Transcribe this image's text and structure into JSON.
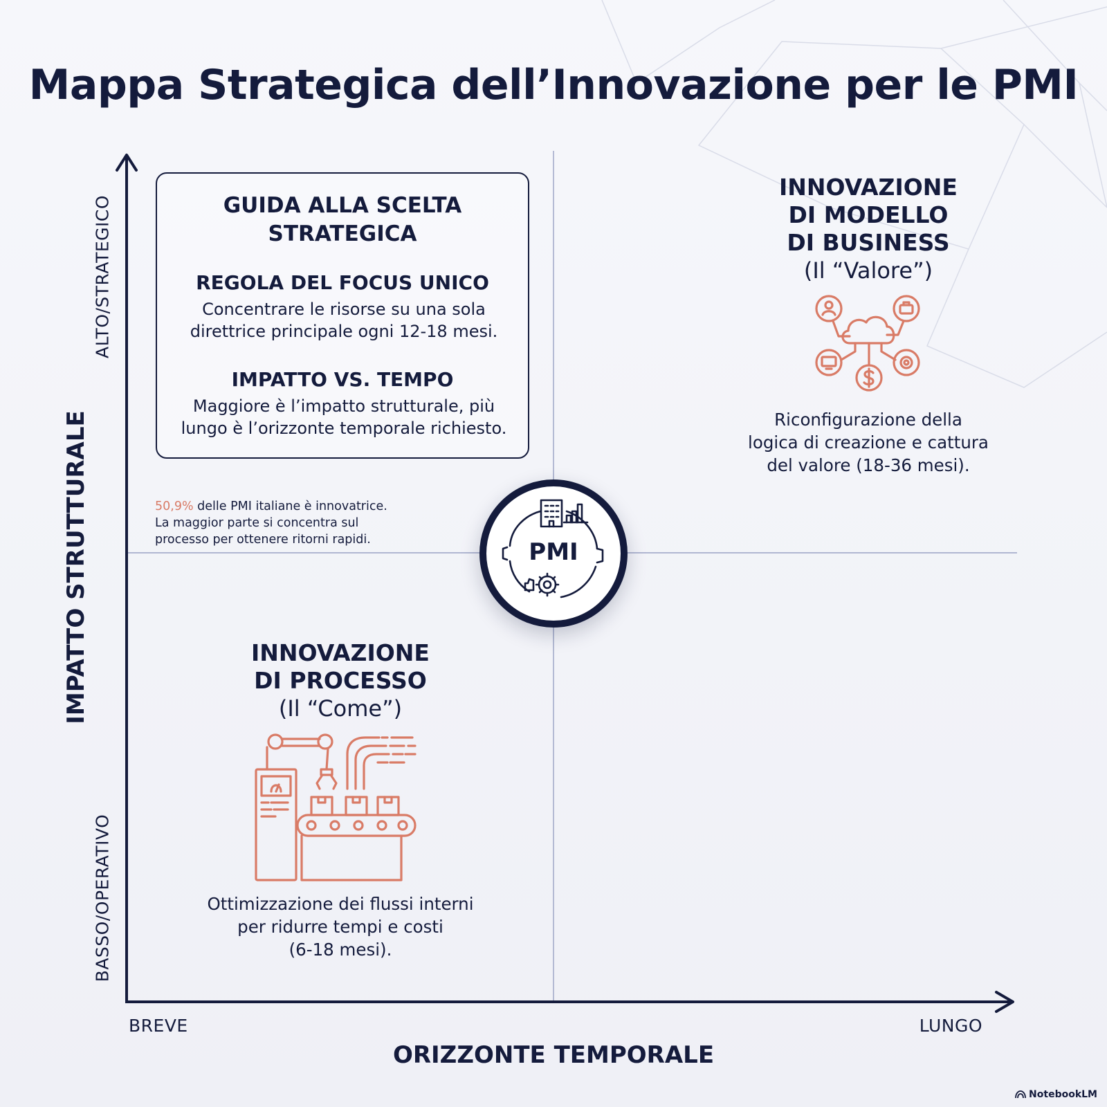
{
  "title": "Mappa Strategica dell’Innovazione per le PMI",
  "guide": {
    "title_lines": [
      "GUIDA ALLA SCELTA",
      "STRATEGICA"
    ],
    "rule1_heading": "REGOLA DEL FOCUS UNICO",
    "rule1_lines": [
      "Concentrare le risorse su una sola",
      "direttrice principale ogni 12-18 mesi."
    ],
    "rule2_heading": "IMPATTO VS. TEMPO",
    "rule2_lines": [
      "Maggiore è l’impatto strutturale, più",
      "lungo è l’orizzonte temporale richiesto."
    ]
  },
  "stat": {
    "highlight": "50,9%",
    "line1_rest": " delle PMI italiane è innovatrice.",
    "line2": "La maggior parte si concentra sul",
    "line3": "processo per ottenere ritorni rapidi."
  },
  "center_label": "PMI",
  "business_model": {
    "title_lines": [
      "INNOVAZIONE",
      "DI MODELLO",
      "DI BUSINESS"
    ],
    "subtitle": "(Il “Valore”)",
    "desc_lines": [
      "Riconfigurazione della",
      "logica di creazione e cattura",
      "del valore (18-36 mesi)."
    ]
  },
  "process": {
    "title_lines": [
      "INNOVAZIONE",
      "DI PROCESSO"
    ],
    "subtitle": "(Il “Come”)",
    "desc_lines": [
      "Ottimizzazione dei flussi interni",
      "per ridurre tempi e costi",
      "(6-18 mesi)."
    ]
  },
  "axes": {
    "y_title": "IMPATTO STRUTTURALE",
    "y_high": "ALTO/STRATEGICO",
    "y_low": "BASSO/OPERATIVO",
    "x_title": "ORIZZONTE TEMPORALE",
    "x_low": "BREVE",
    "x_high": "LUNGO"
  },
  "icons": {
    "center": "factory-gear-icon",
    "business_model": "cloud-network-icon",
    "process": "factory-robot-arm-icon"
  },
  "colors": {
    "navy": "#141b3c",
    "accent": "#d97b66",
    "grid": "#9aa2c4"
  },
  "brand": "NotebookLM"
}
